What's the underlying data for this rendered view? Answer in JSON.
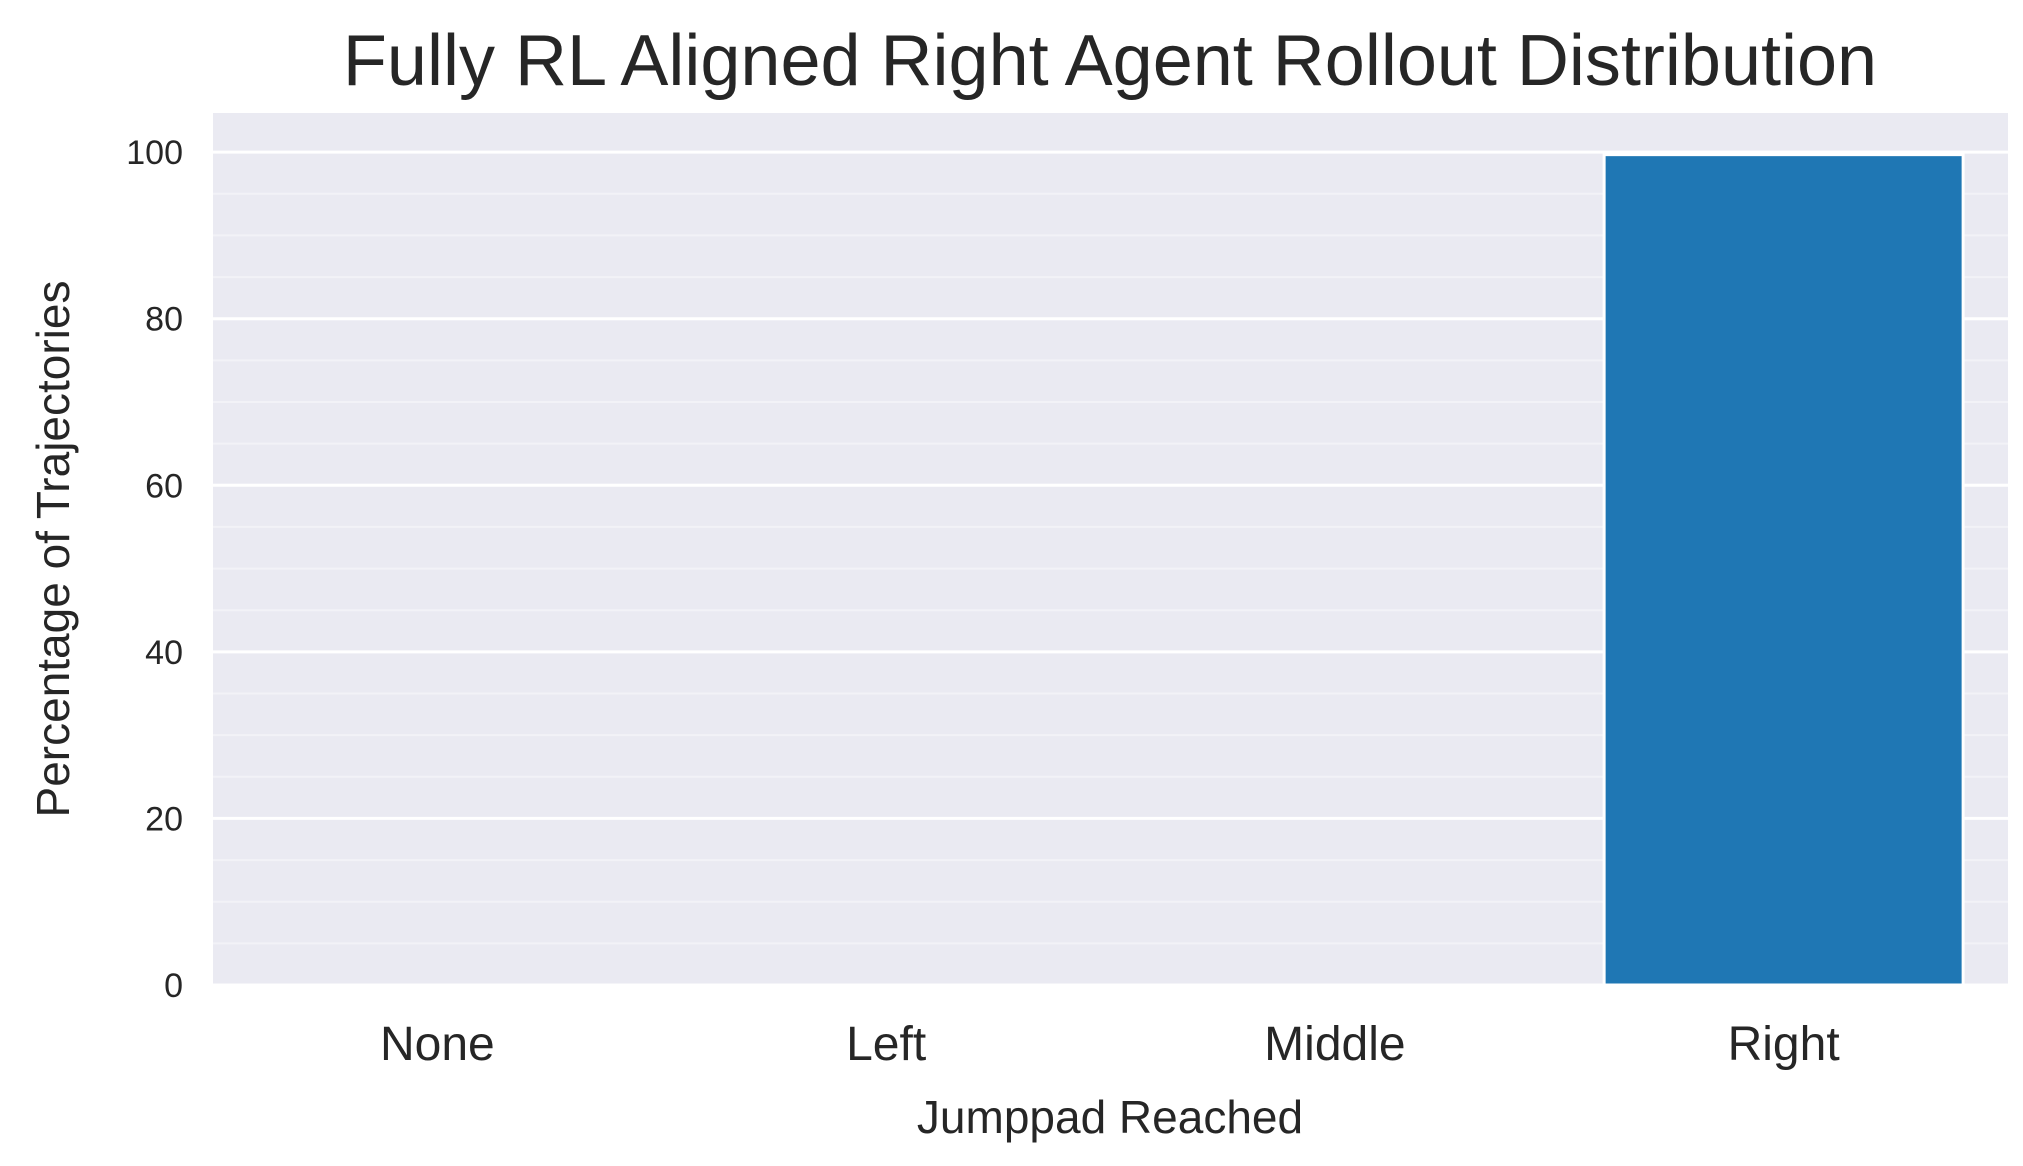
{
  "chart_data": {
    "type": "bar",
    "title": "Fully RL Aligned Right Agent Rollout Distribution",
    "xlabel": "Jumppad Reached",
    "ylabel": "Percentage of Trajectories",
    "categories": [
      "None",
      "Left",
      "Middle",
      "Right"
    ],
    "values": [
      0,
      0,
      0,
      99.7
    ],
    "ylim": [
      0,
      104.7
    ],
    "yticks": [
      0,
      20,
      40,
      60,
      80,
      100
    ],
    "grid": true,
    "legend": "none",
    "colors": {
      "bar": "#1f77b4",
      "plot_background": "#eaeaf2",
      "grid_major": "#ffffff",
      "grid_minor": "#f2f2f7"
    }
  }
}
